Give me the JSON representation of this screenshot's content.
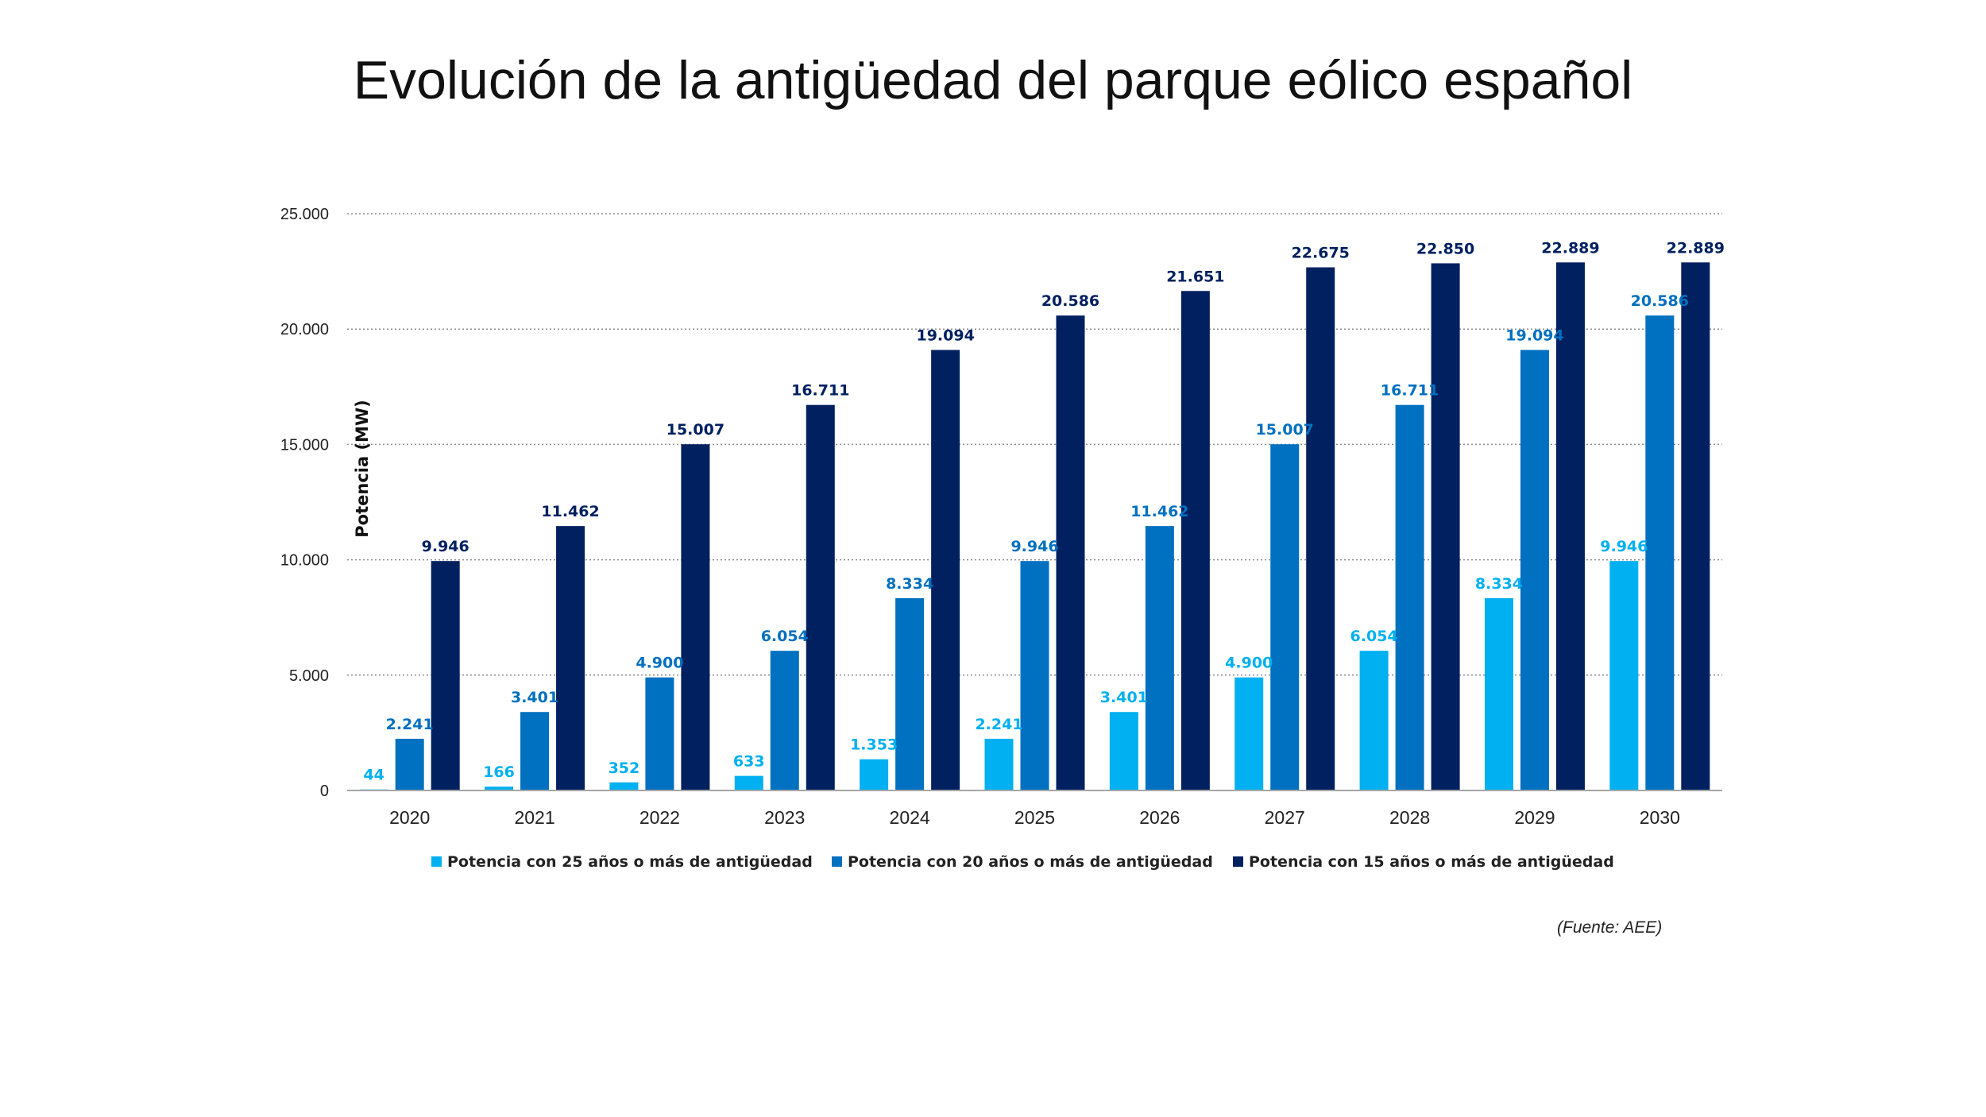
{
  "title": "Evolución de la antigüedad del parque eólico español",
  "source": "(Fuente: AEE)",
  "chart_data": {
    "type": "bar",
    "title": "Evolución de la antigüedad del parque eólico español",
    "ylabel": "Potencia (MW)",
    "xlabel": "",
    "ylim": [
      0,
      25000
    ],
    "yticks": [
      0,
      5000,
      10000,
      15000,
      20000,
      25000
    ],
    "ytick_labels": [
      "0",
      "5.000",
      "10.000",
      "15.000",
      "20.000",
      "25.000"
    ],
    "grid": "horizontal dotted",
    "legend_position": "bottom",
    "categories": [
      "2020",
      "2021",
      "2022",
      "2023",
      "2024",
      "2025",
      "2026",
      "2027",
      "2028",
      "2029",
      "2030"
    ],
    "series": [
      {
        "name": "Potencia con 25 años o más de antigüedad",
        "color": "#00b0f0",
        "values": [
          44,
          166,
          352,
          633,
          1353,
          2241,
          3401,
          4900,
          6054,
          8334,
          9946
        ],
        "labels": [
          "44",
          "166",
          "352",
          "633",
          "1.353",
          "2.241",
          "3.401",
          "4.900",
          "6.054",
          "8.334",
          "9.946"
        ]
      },
      {
        "name": "Potencia con 20 años o más de antigüedad",
        "color": "#0070c0",
        "values": [
          2241,
          3401,
          4900,
          6054,
          8334,
          9946,
          11462,
          15007,
          16711,
          19094,
          20586
        ],
        "labels": [
          "2.241",
          "3.401",
          "4.900",
          "6.054",
          "8.334",
          "9.946",
          "11.462",
          "15.007",
          "16.711",
          "19.094",
          "20.586"
        ]
      },
      {
        "name": "Potencia con 15 años o más de antigüedad",
        "color": "#002060",
        "values": [
          9946,
          11462,
          15007,
          16711,
          19094,
          20586,
          21651,
          22675,
          22850,
          22889,
          22889
        ],
        "labels": [
          "9.946",
          "11.462",
          "15.007",
          "16.711",
          "19.094",
          "20.586",
          "21.651",
          "22.675",
          "22.850",
          "22.889",
          "22.889"
        ]
      }
    ]
  }
}
